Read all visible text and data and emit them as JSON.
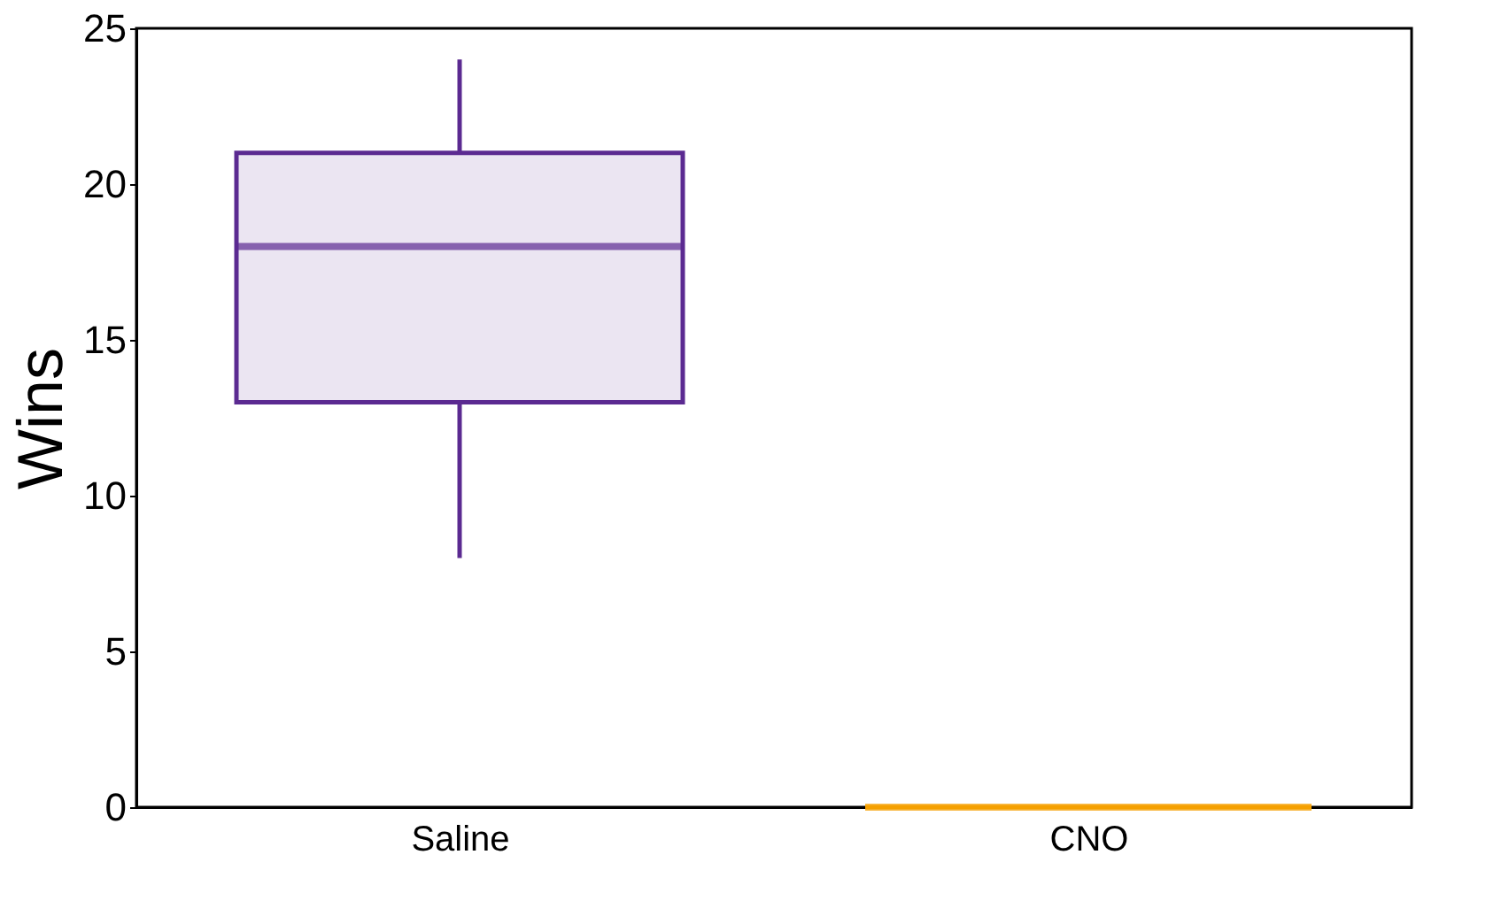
{
  "chart_data": {
    "type": "box",
    "ylabel": "Wins",
    "categories": [
      "Saline",
      "CNO"
    ],
    "boxes": [
      {
        "low": 8,
        "q1": 13,
        "median": 18,
        "q3": 21,
        "high": 24
      },
      {
        "low": 0,
        "q1": 0,
        "median": 0,
        "q3": 0,
        "high": 0
      }
    ],
    "colors": [
      "#5b2a91",
      "#f5a000"
    ],
    "ylim": [
      0,
      25
    ],
    "yticks": [
      0,
      5,
      10,
      15,
      20,
      25
    ],
    "grid": false
  }
}
